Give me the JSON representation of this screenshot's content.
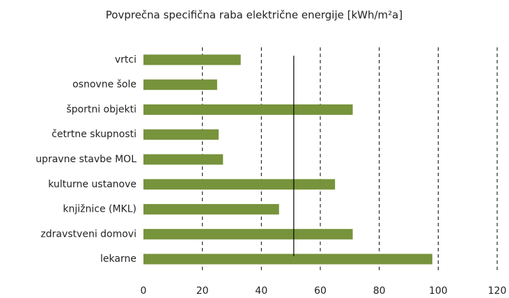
{
  "chart_data": {
    "type": "hbar",
    "title": "Povprečna specifična raba električne energije [kWh/m²a]",
    "categories": [
      "vrtci",
      "osnovne šole",
      "športni objekti",
      "četrtne skupnosti",
      "upravne stavbe MOL",
      "kulturne ustanove",
      "knjižnice (MKL)",
      "zdravstveni domovi",
      "lekarne"
    ],
    "values": [
      33,
      25,
      71,
      25.5,
      27,
      65,
      46,
      71,
      98
    ],
    "color": "#77933c",
    "reference_line": 51,
    "xlim": [
      0,
      120
    ],
    "xticks": [
      0,
      20,
      40,
      60,
      80,
      100,
      120
    ],
    "grid": true
  }
}
